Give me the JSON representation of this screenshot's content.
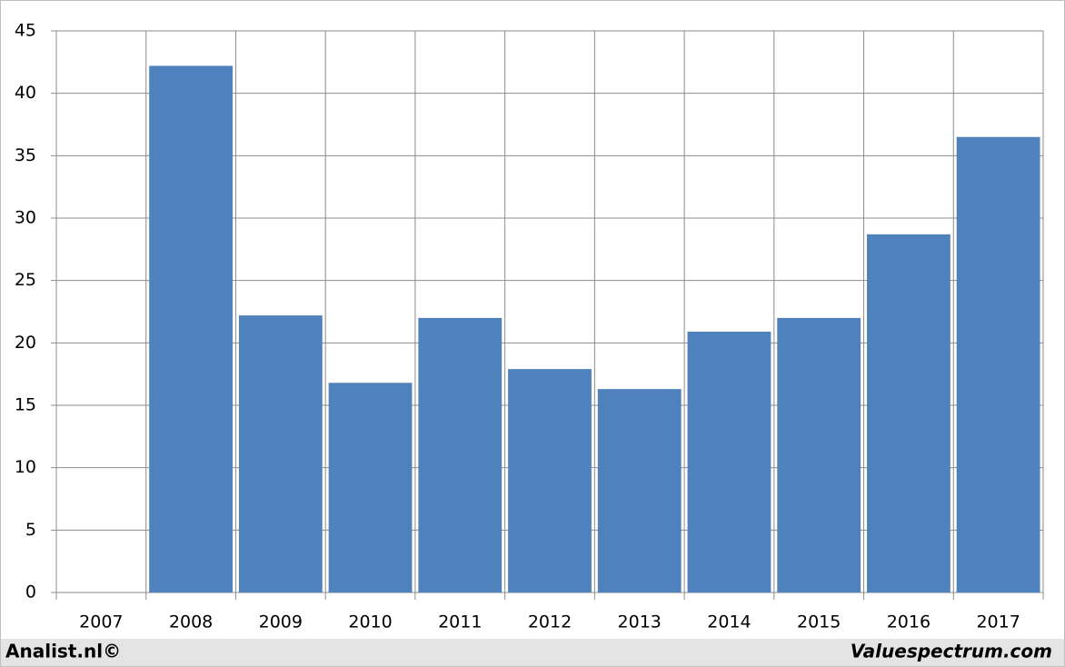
{
  "chart_data": {
    "type": "bar",
    "categories": [
      "2007",
      "2008",
      "2009",
      "2010",
      "2011",
      "2012",
      "2013",
      "2014",
      "2015",
      "2016",
      "2017"
    ],
    "values": [
      null,
      42.2,
      22.2,
      16.8,
      22.0,
      17.9,
      16.3,
      20.9,
      22.0,
      28.7,
      36.5
    ],
    "color": "#4f81bd",
    "ylim": [
      0,
      45
    ],
    "yticks": [
      0,
      5,
      10,
      15,
      20,
      25,
      30,
      35,
      40,
      45
    ],
    "grid": true,
    "footer_left": "Analist.nl©",
    "footer_right": "Valuespectrum.com"
  }
}
